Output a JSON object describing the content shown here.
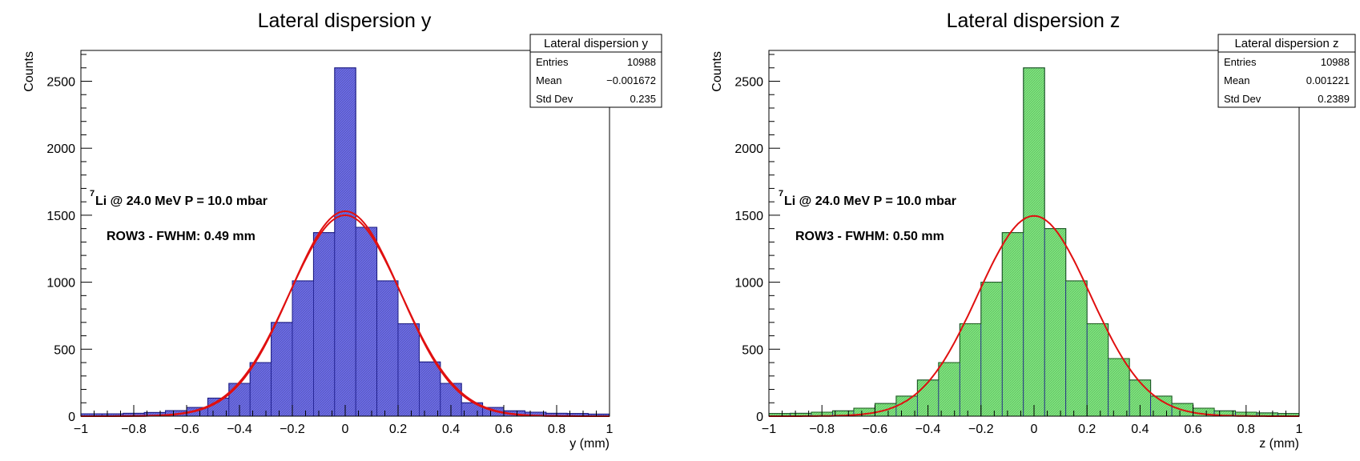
{
  "chart_data": [
    {
      "type": "bar",
      "title": "Lateral dispersion y",
      "xlabel": "y (mm)",
      "ylabel": "Counts",
      "xlim": [
        -1,
        1
      ],
      "ylim": [
        0,
        2730
      ],
      "xticks": [
        "−1",
        "−0.8",
        "−0.6",
        "−0.4",
        "−0.2",
        "0",
        "0.2",
        "0.4",
        "0.6",
        "0.8",
        "1"
      ],
      "yticks": [
        "0",
        "500",
        "1000",
        "1500",
        "2000",
        "2500"
      ],
      "fill_color": "#6b6be8",
      "bins": {
        "x_low": -1,
        "x_high": 1,
        "values": [
          18,
          18,
          22,
          28,
          42,
          65,
          135,
          245,
          400,
          700,
          1010,
          1370,
          2600,
          1410,
          1010,
          690,
          405,
          245,
          100,
          65,
          40,
          30,
          22,
          20,
          16
        ]
      },
      "stats": {
        "title": "Lateral dispersion y",
        "rows": [
          {
            "label": "Entries",
            "value": "10988"
          },
          {
            "label": "Mean",
            "value": "−0.001672"
          },
          {
            "label": "Std Dev",
            "value": "0.235"
          }
        ]
      },
      "fits": [
        {
          "mean": 0.0,
          "amplitude": 1530,
          "fwhm": 0.49
        },
        {
          "mean": 0.0,
          "amplitude": 1500,
          "fwhm": 0.5
        }
      ],
      "fit_color": "#e01010",
      "annotation_sup": "7",
      "annotation_main": "Li @ 24.0 MeV P = 10.0 mbar",
      "annotation_fwhm": "ROW3 - FWHM: 0.49 mm"
    },
    {
      "type": "bar",
      "title": "Lateral dispersion z",
      "xlabel": "z (mm)",
      "ylabel": "Counts",
      "xlim": [
        -1,
        1
      ],
      "ylim": [
        0,
        2730
      ],
      "xticks": [
        "−1",
        "−0.8",
        "−0.6",
        "−0.4",
        "−0.2",
        "0",
        "0.2",
        "0.4",
        "0.6",
        "0.8",
        "1"
      ],
      "yticks": [
        "0",
        "500",
        "1000",
        "1500",
        "2000",
        "2500"
      ],
      "fill_color": "#7de87d",
      "bins": {
        "x_low": -1,
        "x_high": 1,
        "values": [
          20,
          22,
          30,
          40,
          60,
          95,
          150,
          270,
          400,
          690,
          1000,
          1370,
          2600,
          1400,
          1010,
          690,
          430,
          270,
          150,
          95,
          60,
          40,
          30,
          25,
          20
        ]
      },
      "stats": {
        "title": "Lateral dispersion z",
        "rows": [
          {
            "label": "Entries",
            "value": "10988"
          },
          {
            "label": "Mean",
            "value": "0.001221"
          },
          {
            "label": "Std Dev",
            "value": "0.2389"
          }
        ]
      },
      "fits": [
        {
          "mean": 0.0,
          "amplitude": 1495,
          "fwhm": 0.5
        }
      ],
      "fit_color": "#e01010",
      "annotation_sup": "7",
      "annotation_main": "Li @ 24.0 MeV P = 10.0 mbar",
      "annotation_fwhm": "ROW3 - FWHM: 0.50 mm"
    }
  ]
}
